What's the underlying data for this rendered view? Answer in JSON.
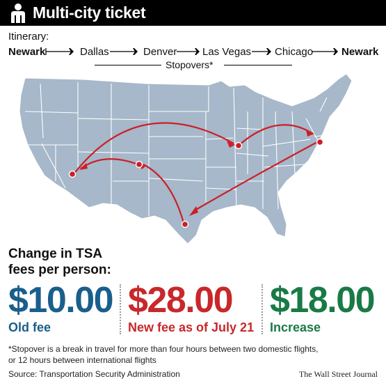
{
  "header": {
    "title": "Multi-city ticket",
    "icon": "person-icon"
  },
  "itinerary": {
    "label": "Itinerary:",
    "cities": [
      "Newark",
      "Dallas",
      "Denver",
      "Las Vegas",
      "Chicago",
      "Newark"
    ],
    "stopovers_label": "Stopovers*"
  },
  "fees": {
    "heading_line1": "Change in TSA",
    "heading_line2": "fees per person:",
    "old": {
      "value": "$10.00",
      "caption": "Old fee",
      "color": "#1a5e8c"
    },
    "new": {
      "value": "$28.00",
      "caption": "New fee as of July 21",
      "color": "#c8282b"
    },
    "increase": {
      "value": "$18.00",
      "caption": "Increase",
      "color": "#1a7a45"
    }
  },
  "footnote": {
    "line1": "*Stopover is a break in travel for more than four hours between two domestic flights,",
    "line2": "or 12 hours between international flights"
  },
  "source": "Source: Transportation Security Administration",
  "credit": "The Wall Street Journal",
  "colors": {
    "map_fill": "#a6b8ca",
    "route": "#cc1f26"
  }
}
